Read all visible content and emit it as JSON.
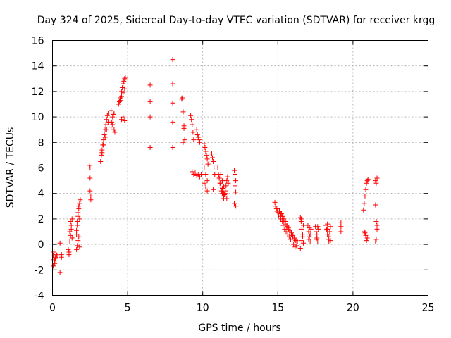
{
  "chart_data": {
    "type": "scatter",
    "title": "Day 324 of 2025, Sidereal Day-to-day VTEC variation (SDTVAR) for receiver krgg",
    "xlabel": "GPS time / hours",
    "ylabel": "SDTVAR / TECUs",
    "xlim": [
      0,
      25
    ],
    "ylim": [
      -4,
      16
    ],
    "xticks": [
      0,
      5,
      10,
      15,
      20,
      25
    ],
    "yticks": [
      -4,
      -2,
      0,
      2,
      4,
      6,
      8,
      10,
      12,
      14,
      16
    ],
    "xtick_labels": [
      "0",
      "5",
      "10",
      "15",
      "20",
      "25"
    ],
    "ytick_labels": [
      "-4",
      "-2",
      "0",
      "2",
      "4",
      "6",
      "8",
      "10",
      "12",
      "14",
      "16"
    ],
    "grid": true,
    "marker": "+",
    "color": "#ff0000",
    "series": [
      {
        "name": "SDTVAR",
        "x": [
          0.05,
          0.1,
          0.15,
          0.2,
          0.25,
          0.05,
          0.1,
          0.15,
          0.2,
          0.3,
          0.5,
          0.5,
          0.6,
          0.6,
          1.05,
          1.1,
          1.15,
          1.2,
          1.25,
          1.3,
          1.1,
          1.15,
          1.2,
          1.25,
          1.3,
          1.6,
          1.65,
          1.7,
          1.75,
          1.8,
          1.85,
          1.6,
          1.65,
          1.7,
          1.75,
          1.8,
          1.6,
          1.65,
          1.7,
          1.75,
          1.8,
          2.45,
          2.5,
          2.5,
          2.5,
          2.55,
          2.55,
          3.2,
          3.25,
          3.3,
          3.35,
          3.4,
          3.45,
          3.5,
          3.55,
          3.6,
          3.65,
          3.7,
          3.3,
          3.4,
          3.5,
          3.6,
          3.7,
          3.9,
          3.95,
          4.0,
          4.05,
          4.1,
          4.15,
          4.0,
          4.1,
          3.9,
          4.4,
          4.45,
          4.5,
          4.55,
          4.6,
          4.65,
          4.7,
          4.75,
          4.8,
          4.85,
          4.5,
          4.6,
          4.7,
          4.8,
          4.6,
          4.7,
          4.8,
          6.5,
          6.5,
          6.5,
          6.5,
          8.0,
          8.0,
          8.0,
          8.0,
          8.0,
          8.6,
          8.65,
          8.7,
          8.75,
          8.8,
          8.7,
          8.75,
          9.2,
          9.25,
          9.3,
          9.35,
          9.4,
          9.3,
          9.4,
          9.5,
          9.6,
          9.7,
          9.8,
          9.9,
          9.6,
          9.65,
          9.7,
          9.75,
          9.8,
          10.1,
          10.15,
          10.2,
          10.25,
          10.3,
          10.35,
          10.1,
          10.2,
          10.3,
          10.1,
          10.2,
          10.3,
          10.6,
          10.65,
          10.7,
          10.75,
          10.8,
          10.7,
          11.0,
          11.05,
          11.1,
          11.15,
          11.2,
          11.25,
          11.3,
          11.35,
          11.4,
          11.45,
          11.5,
          11.55,
          11.6,
          11.65,
          11.7,
          11.1,
          11.2,
          11.3,
          11.4,
          11.5,
          11.6,
          11.2,
          11.3,
          11.4,
          11.5,
          12.1,
          12.15,
          12.2,
          12.15,
          12.2,
          12.1,
          12.2,
          14.8,
          14.85,
          14.9,
          14.95,
          15.0,
          15.05,
          15.1,
          15.15,
          15.2,
          15.25,
          15.3,
          15.35,
          15.4,
          15.45,
          15.5,
          15.55,
          15.6,
          15.65,
          15.7,
          15.75,
          15.8,
          15.85,
          15.9,
          15.95,
          16.0,
          16.05,
          16.1,
          16.15,
          16.2,
          16.25,
          16.3,
          15.0,
          15.1,
          15.2,
          15.3,
          15.4,
          15.5,
          15.6,
          15.7,
          15.8,
          15.9,
          16.0,
          16.1,
          16.2,
          16.5,
          16.55,
          16.6,
          16.65,
          16.7,
          16.5,
          16.6,
          16.7,
          16.55,
          16.65,
          17.0,
          17.05,
          17.1,
          17.15,
          17.2,
          17.05,
          17.15,
          17.1,
          17.5,
          17.55,
          17.6,
          17.65,
          17.7,
          17.6,
          17.55,
          17.65,
          18.2,
          18.25,
          18.3,
          18.35,
          18.4,
          18.45,
          18.5,
          18.3,
          18.4,
          18.5,
          18.3,
          19.2,
          19.2,
          19.2,
          20.7,
          20.75,
          20.8,
          20.85,
          20.9,
          20.95,
          21.0,
          20.75,
          20.85,
          20.95,
          20.8,
          20.9,
          21.5,
          21.55,
          21.6,
          21.5,
          21.55,
          21.6,
          21.55,
          21.5,
          21.6
        ],
        "y": [
          -0.9,
          -1.2,
          -1.5,
          -1.0,
          -0.8,
          -1.7,
          -0.6,
          -1.3,
          -1.1,
          -0.9,
          -2.2,
          0.1,
          -0.8,
          -1.0,
          -0.4,
          -0.6,
          0.2,
          0.7,
          1.5,
          2.0,
          -0.8,
          1.0,
          1.8,
          1.2,
          0.5,
          0.8,
          1.5,
          2.2,
          2.8,
          3.2,
          3.5,
          -0.4,
          -0.1,
          0.3,
          0.6,
          -0.2,
          1.1,
          1.8,
          2.5,
          3.0,
          2.0,
          6.2,
          6.0,
          5.2,
          4.2,
          3.8,
          3.5,
          6.5,
          7.0,
          7.4,
          7.8,
          8.2,
          8.6,
          9.0,
          9.4,
          9.8,
          10.1,
          10.3,
          7.2,
          7.8,
          8.4,
          9.0,
          9.6,
          9.2,
          9.6,
          10.0,
          10.2,
          9.0,
          8.8,
          9.4,
          10.3,
          10.5,
          11.0,
          11.2,
          11.5,
          11.8,
          12.0,
          12.3,
          12.6,
          12.8,
          13.0,
          13.1,
          11.3,
          11.6,
          11.9,
          12.2,
          9.8,
          10.0,
          9.7,
          12.5,
          11.2,
          10.0,
          7.6,
          14.5,
          12.6,
          11.1,
          9.6,
          7.6,
          11.4,
          11.5,
          10.4,
          9.3,
          8.2,
          8.0,
          9.1,
          10.1,
          9.8,
          9.4,
          8.8,
          8.2,
          5.7,
          5.5,
          5.6,
          5.4,
          5.5,
          5.3,
          5.5,
          9.0,
          8.6,
          8.4,
          8.2,
          8.0,
          7.9,
          7.6,
          7.3,
          7.0,
          6.7,
          6.3,
          6.0,
          5.5,
          5.0,
          4.8,
          4.5,
          4.2,
          7.1,
          6.8,
          6.5,
          6.0,
          5.5,
          4.3,
          6.0,
          5.5,
          5.2,
          4.8,
          4.5,
          4.2,
          4.0,
          3.8,
          3.6,
          3.9,
          4.2,
          4.6,
          5.0,
          5.3,
          4.8,
          5.2,
          4.8,
          4.4,
          4.0,
          3.8,
          3.6,
          5.5,
          5.0,
          4.5,
          4.0,
          5.8,
          5.5,
          5.0,
          4.6,
          4.1,
          3.2,
          3.0,
          3.3,
          3.0,
          2.8,
          2.6,
          2.5,
          2.3,
          2.6,
          2.2,
          2.0,
          2.4,
          1.8,
          1.5,
          1.9,
          1.2,
          1.6,
          1.0,
          1.4,
          0.8,
          1.2,
          0.6,
          1.0,
          0.4,
          0.8,
          0.2,
          0.6,
          0.0,
          0.4,
          -0.2,
          0.3,
          -0.1,
          0.2,
          2.8,
          2.6,
          2.4,
          2.2,
          2.0,
          1.8,
          1.5,
          1.3,
          1.1,
          0.9,
          0.7,
          0.5,
          0.3,
          2.1,
          1.8,
          1.2,
          0.6,
          0.1,
          -0.3,
          0.3,
          1.5,
          2.0,
          0.8,
          1.5,
          1.0,
          0.6,
          0.2,
          1.2,
          0.4,
          0.8,
          1.3,
          1.4,
          1.0,
          0.5,
          0.2,
          1.2,
          0.8,
          0.4,
          1.4,
          1.5,
          1.2,
          0.8,
          0.4,
          0.2,
          1.0,
          1.4,
          1.6,
          0.6,
          0.3,
          1.2,
          1.7,
          1.4,
          1.0,
          2.7,
          3.2,
          3.8,
          4.3,
          4.8,
          5.0,
          5.1,
          1.0,
          0.7,
          0.5,
          0.9,
          0.3,
          5.0,
          4.8,
          5.2,
          3.1,
          1.8,
          1.5,
          0.4,
          0.2,
          1.2
        ]
      }
    ]
  }
}
